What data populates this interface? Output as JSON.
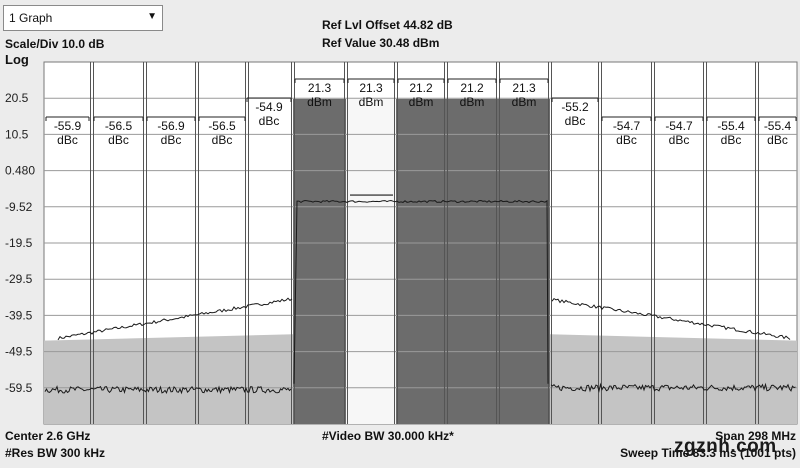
{
  "graph_selector": {
    "value": "1 Graph"
  },
  "header": {
    "scale_div": "Scale/Div 10.0 dB",
    "scale_type": "Log",
    "ref_offset": "Ref Lvl Offset 44.82 dB",
    "ref_value": "Ref Value 30.48 dBm"
  },
  "y_ticks": [
    "20.5",
    "10.5",
    "0.480",
    "-9.52",
    "-19.5",
    "-29.5",
    "-39.5",
    "-49.5",
    "-59.5"
  ],
  "carrier_labels": [
    {
      "value": "21.3",
      "unit": "dBm",
      "highlight": false
    },
    {
      "value": "21.3",
      "unit": "dBm",
      "highlight": true
    },
    {
      "value": "21.2",
      "unit": "dBm",
      "highlight": false
    },
    {
      "value": "21.2",
      "unit": "dBm",
      "highlight": false
    },
    {
      "value": "21.3",
      "unit": "dBm",
      "highlight": false
    }
  ],
  "left_offsets": [
    {
      "value": "-55.9",
      "unit": "dBc"
    },
    {
      "value": "-56.5",
      "unit": "dBc"
    },
    {
      "value": "-56.9",
      "unit": "dBc"
    },
    {
      "value": "-56.5",
      "unit": "dBc"
    },
    {
      "value": "-54.9",
      "unit": "dBc"
    }
  ],
  "right_offsets": [
    {
      "value": "-55.2",
      "unit": "dBc"
    },
    {
      "value": "-54.7",
      "unit": "dBc"
    },
    {
      "value": "-54.7",
      "unit": "dBc"
    },
    {
      "value": "-55.4",
      "unit": "dBc"
    },
    {
      "value": "-55.4",
      "unit": "dBc"
    }
  ],
  "footer": {
    "center": "Center 2.6 GHz",
    "res_bw": "#Res BW 300 kHz",
    "video_bw": "#Video BW 30.000 kHz*",
    "span": "Span 298 MHz",
    "sweep": "Sweep Time 83.3 ms (1001 pts)"
  },
  "watermark": "zgznh.com",
  "colors": {
    "background": "#ececec",
    "plot_background": "#ffffff",
    "carrier_fill": "#6c6c6c",
    "highlight_carrier_fill": "#f7f7f7",
    "limit_fill": "#c4c4c4",
    "trace": "#1a1a1a"
  }
}
